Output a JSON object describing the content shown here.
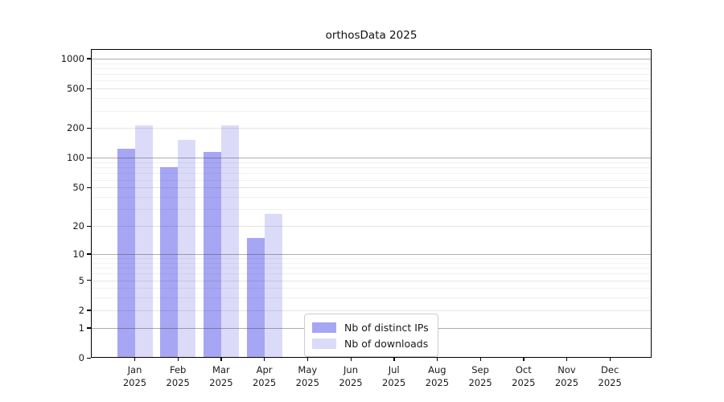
{
  "title": "orthosData 2025",
  "chart_data": {
    "type": "bar",
    "title": "orthosData 2025",
    "xlabel": "",
    "ylabel": "",
    "year_label": "2025",
    "categories": [
      "Jan",
      "Feb",
      "Mar",
      "Apr",
      "May",
      "Jun",
      "Jul",
      "Aug",
      "Sep",
      "Oct",
      "Nov",
      "Dec"
    ],
    "series": [
      {
        "name": "Nb of distinct IPs",
        "color": "#a6a6f4",
        "values": [
          125,
          80,
          116,
          15,
          null,
          null,
          null,
          null,
          null,
          null,
          null,
          null
        ]
      },
      {
        "name": "Nb of downloads",
        "color": "#dbdbf9",
        "values": [
          215,
          152,
          215,
          27,
          null,
          null,
          null,
          null,
          null,
          null,
          null,
          null
        ]
      }
    ],
    "y_axis": {
      "scale": "log1p",
      "ticks": [
        0,
        1,
        2,
        5,
        10,
        20,
        50,
        100,
        200,
        500,
        1000
      ],
      "major_gridlines": [
        1,
        10,
        100,
        1000
      ],
      "ylim": [
        0,
        1250
      ],
      "grid": true
    },
    "legend": {
      "entries": [
        "Nb of distinct IPs",
        "Nb of downloads"
      ],
      "position": "bottom-center"
    }
  }
}
